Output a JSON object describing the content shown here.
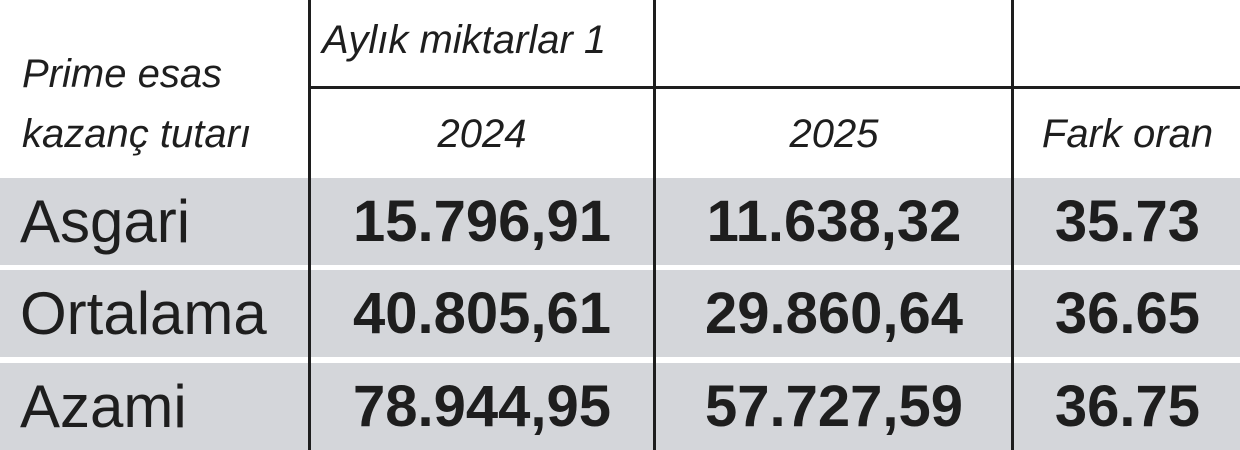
{
  "chart_data": {
    "type": "table",
    "header": {
      "row_label": "Prime esas kazanç tutarı",
      "row_label_lines": [
        "Prime esas",
        "kazanç tutarı"
      ],
      "group": "Aylık miktarlar 1",
      "columns": [
        "2024",
        "2025",
        "Fark oran"
      ]
    },
    "rows": [
      {
        "label": "Asgari",
        "values": [
          "15.796,91",
          "11.638,32",
          "35.73"
        ]
      },
      {
        "label": "Ortalama",
        "values": [
          "40.805,61",
          "29.860,64",
          "36.65"
        ]
      },
      {
        "label": "Azami",
        "values": [
          "78.944,95",
          "57.727,59",
          "36.75"
        ]
      }
    ],
    "row_fill_color": "#d4d6da"
  }
}
